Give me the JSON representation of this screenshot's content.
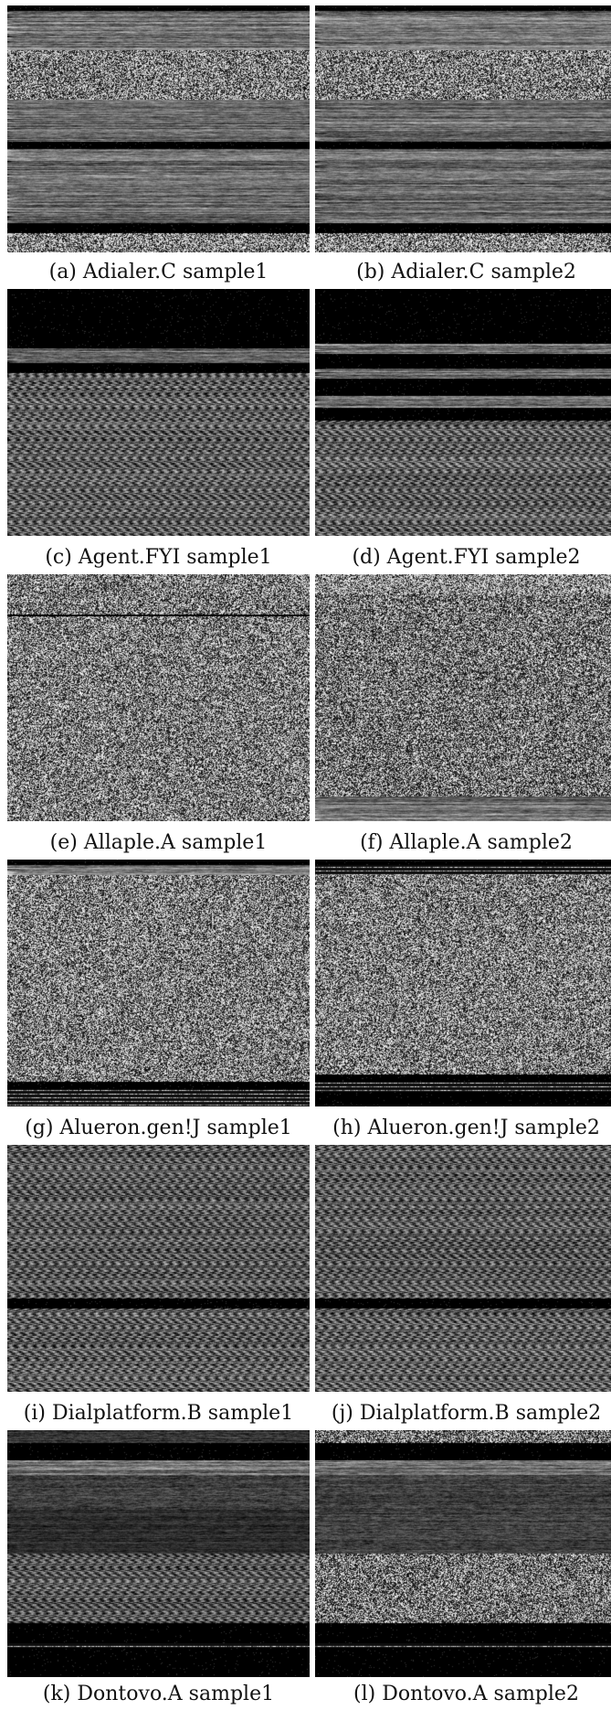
{
  "panels": [
    {
      "caption": "(a) Adialer.C sample1"
    },
    {
      "caption": "(b) Adialer.C sample2"
    },
    {
      "caption": "(c) Agent.FYI sample1"
    },
    {
      "caption": "(d) Agent.FYI sample2"
    },
    {
      "caption": "(e) Allaple.A sample1"
    },
    {
      "caption": "(f) Allaple.A sample2"
    },
    {
      "caption": "(g) Alueron.gen!J sample1"
    },
    {
      "caption": "(h) Alueron.gen!J sample2"
    },
    {
      "caption": "(i) Dialplatform.B sample1"
    },
    {
      "caption": "(j) Dialplatform.B sample2"
    },
    {
      "caption": "(k) Dontovo.A sample1"
    },
    {
      "caption": "(l) Dontovo.A sample2"
    }
  ]
}
